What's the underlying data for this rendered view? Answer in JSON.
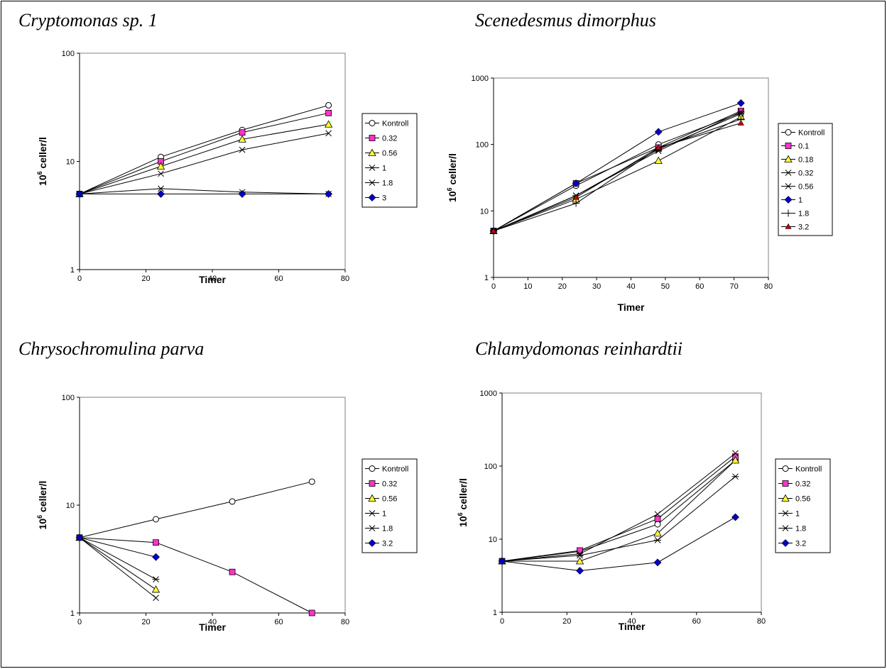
{
  "chart_data": [
    {
      "type": "line",
      "title": "Cryptomonas sp. 1",
      "xlabel": "Timer",
      "ylabel": "10^6 celler/l",
      "ylabel_base": "10",
      "ylabel_sup": "6",
      "ylabel_rest": " celler/l",
      "yscale": "log",
      "xlim": [
        0,
        80
      ],
      "ylim": [
        1,
        100
      ],
      "xticks": [
        "0",
        "20",
        "40",
        "60",
        "80"
      ],
      "yticks": [
        "1",
        "10",
        "100"
      ],
      "grid": false,
      "legend": "right",
      "series": [
        {
          "name": "Kontroll",
          "marker": "open-circle",
          "color": "#ffffff",
          "x": [
            0,
            24.5,
            49,
            75
          ],
          "y": [
            5,
            11,
            19.5,
            33
          ]
        },
        {
          "name": "0.32",
          "marker": "square",
          "color": "#ff33cc",
          "x": [
            0,
            24.5,
            49,
            75
          ],
          "y": [
            5,
            10,
            18.5,
            28
          ]
        },
        {
          "name": "0.56",
          "marker": "triangle",
          "color": "#ffff33",
          "x": [
            0,
            24.5,
            49,
            75
          ],
          "y": [
            5,
            9,
            16,
            22
          ]
        },
        {
          "name": "1",
          "marker": "x",
          "color": "#000000",
          "x": [
            0,
            24.5,
            49,
            75
          ],
          "y": [
            5,
            7.7,
            12.8,
            18.2
          ]
        },
        {
          "name": "1.8",
          "marker": "asterisk",
          "color": "#000000",
          "x": [
            0,
            24.5,
            49,
            75
          ],
          "y": [
            5,
            5.6,
            5.2,
            5
          ]
        },
        {
          "name": "3",
          "marker": "diamond",
          "color": "#0000cc",
          "x": [
            0,
            24.5,
            49,
            75
          ],
          "y": [
            5,
            5,
            5,
            5
          ]
        }
      ]
    },
    {
      "type": "line",
      "title": "Scenedesmus dimorphus",
      "xlabel": "Timer",
      "ylabel": "10^6 celler/l",
      "ylabel_base": "10",
      "ylabel_sup": "6",
      "ylabel_rest": " celler/l",
      "yscale": "log",
      "xlim": [
        0,
        80
      ],
      "ylim": [
        1,
        1000
      ],
      "xticks": [
        "0",
        "10",
        "20",
        "30",
        "40",
        "50",
        "60",
        "70",
        "80"
      ],
      "yticks": [
        "1",
        "10",
        "100",
        "1000"
      ],
      "grid": false,
      "legend": "right",
      "series": [
        {
          "name": "Kontroll",
          "marker": "open-circle",
          "color": "#ffffff",
          "x": [
            0,
            24,
            48,
            72
          ],
          "y": [
            5,
            24,
            100,
            300
          ]
        },
        {
          "name": "0.1",
          "marker": "square",
          "color": "#ff33cc",
          "x": [
            0,
            24,
            48,
            72
          ],
          "y": [
            5,
            26,
            90,
            320
          ]
        },
        {
          "name": "0.18",
          "marker": "triangle",
          "color": "#ffff33",
          "x": [
            0,
            24,
            48,
            72
          ],
          "y": [
            5,
            15,
            57,
            260
          ]
        },
        {
          "name": "0.32",
          "marker": "x",
          "color": "#000000",
          "x": [
            0,
            24,
            48,
            72
          ],
          "y": [
            5,
            17,
            85,
            290
          ]
        },
        {
          "name": "0.56",
          "marker": "asterisk",
          "color": "#000000",
          "x": [
            0,
            24,
            48,
            72
          ],
          "y": [
            5,
            17,
            80,
            310
          ]
        },
        {
          "name": "1",
          "marker": "diamond",
          "color": "#0000cc",
          "x": [
            0,
            24,
            48,
            72
          ],
          "y": [
            5,
            26,
            155,
            420
          ]
        },
        {
          "name": "1.8",
          "marker": "plus",
          "color": "#000000",
          "x": [
            0,
            24,
            48,
            72
          ],
          "y": [
            5,
            13,
            88,
            240
          ]
        },
        {
          "name": "3.2",
          "marker": "small-triangle",
          "color": "#cc0000",
          "x": [
            0,
            24,
            48,
            72
          ],
          "y": [
            5,
            16,
            90,
            210
          ]
        }
      ]
    },
    {
      "type": "line",
      "title": "Chrysochromulina parva",
      "xlabel": "Timer",
      "ylabel": "10^6 celler/l",
      "ylabel_base": "10",
      "ylabel_sup": "6",
      "ylabel_rest": " celler/l",
      "yscale": "log",
      "xlim": [
        0,
        80
      ],
      "ylim": [
        1,
        100
      ],
      "xticks": [
        "0",
        "20",
        "40",
        "60",
        "80"
      ],
      "yticks": [
        "1",
        "10",
        "100"
      ],
      "grid": false,
      "legend": "right",
      "series": [
        {
          "name": "Kontroll",
          "marker": "open-circle",
          "color": "#ffffff",
          "x": [
            0,
            23,
            46,
            70
          ],
          "y": [
            5,
            7.4,
            10.8,
            16.5
          ]
        },
        {
          "name": "0.32",
          "marker": "square",
          "color": "#ff33cc",
          "x": [
            0,
            23,
            46,
            70
          ],
          "y": [
            5,
            4.5,
            2.4,
            1
          ]
        },
        {
          "name": "0.56",
          "marker": "triangle",
          "color": "#ffff33",
          "x": [
            0,
            23
          ],
          "y": [
            5,
            1.65
          ]
        },
        {
          "name": "1",
          "marker": "x",
          "color": "#000000",
          "x": [
            0,
            23
          ],
          "y": [
            5,
            1.38
          ]
        },
        {
          "name": "1.8",
          "marker": "asterisk",
          "color": "#000000",
          "x": [
            0,
            23
          ],
          "y": [
            5,
            2.05
          ]
        },
        {
          "name": "3.2",
          "marker": "diamond",
          "color": "#0000cc",
          "x": [
            0,
            23
          ],
          "y": [
            5,
            3.3
          ]
        }
      ]
    },
    {
      "type": "line",
      "title": "Chlamydomonas reinhardtii",
      "xlabel": "Timer",
      "ylabel": "10^6 celler/l",
      "ylabel_base": "10",
      "ylabel_sup": "6",
      "ylabel_rest": " celler/l",
      "yscale": "log",
      "xlim": [
        0,
        80
      ],
      "ylim": [
        1,
        1000
      ],
      "xticks": [
        "0",
        "20",
        "40",
        "60",
        "80"
      ],
      "yticks": [
        "1",
        "10",
        "100",
        "1000"
      ],
      "grid": false,
      "legend": "right",
      "series": [
        {
          "name": "Kontroll",
          "marker": "open-circle",
          "color": "#ffffff",
          "x": [
            0,
            24,
            48,
            72
          ],
          "y": [
            5,
            6.8,
            16,
            120
          ]
        },
        {
          "name": "0.32",
          "marker": "square",
          "color": "#ff33cc",
          "x": [
            0,
            24,
            48,
            72
          ],
          "y": [
            5,
            7,
            19,
            135
          ]
        },
        {
          "name": "0.56",
          "marker": "triangle",
          "color": "#ffff33",
          "x": [
            0,
            24,
            48,
            72
          ],
          "y": [
            5,
            5,
            12,
            120
          ]
        },
        {
          "name": "1",
          "marker": "x",
          "color": "#000000",
          "x": [
            0,
            24,
            48,
            72
          ],
          "y": [
            5,
            6.3,
            22,
            150
          ]
        },
        {
          "name": "1.8",
          "marker": "asterisk",
          "color": "#000000",
          "x": [
            0,
            24,
            48,
            72
          ],
          "y": [
            5,
            6,
            9.7,
            72
          ]
        },
        {
          "name": "3.2",
          "marker": "diamond",
          "color": "#0000cc",
          "x": [
            0,
            24,
            48,
            72
          ],
          "y": [
            5,
            3.7,
            4.8,
            20
          ]
        }
      ]
    }
  ]
}
